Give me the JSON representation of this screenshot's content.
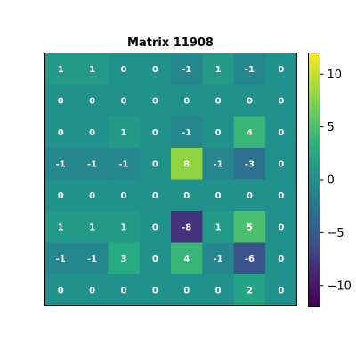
{
  "chart_data": {
    "type": "heatmap",
    "title": "Matrix 11908",
    "rows": [
      [
        1,
        1,
        0,
        0,
        -1,
        1,
        -1,
        0
      ],
      [
        0,
        0,
        0,
        0,
        0,
        0,
        0,
        0
      ],
      [
        0,
        0,
        1,
        0,
        -1,
        0,
        4,
        0
      ],
      [
        -1,
        -1,
        -1,
        0,
        8,
        -1,
        -3,
        0
      ],
      [
        0,
        0,
        0,
        0,
        0,
        0,
        0,
        0
      ],
      [
        1,
        1,
        1,
        0,
        -8,
        1,
        5,
        0
      ],
      [
        -1,
        -1,
        3,
        0,
        4,
        -1,
        -6,
        0
      ],
      [
        0,
        0,
        0,
        0,
        0,
        0,
        2,
        0
      ]
    ],
    "vmin": -12,
    "vmax": 12,
    "colormap": "viridis",
    "colorbar_ticks": [
      10,
      5,
      0,
      -5,
      -10
    ],
    "colorbar_tick_labels": [
      "10",
      "5",
      "0",
      "−5",
      "−10"
    ],
    "x_tick_labels": [],
    "y_tick_labels": [],
    "grid": false,
    "legend": "colorbar-right"
  }
}
